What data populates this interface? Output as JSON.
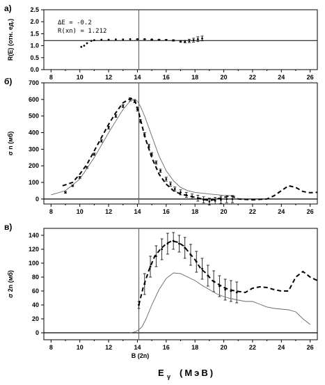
{
  "figure": {
    "xlabel_main": "E",
    "xlabel_sub": "γ",
    "xlabel_rest": "(МэВ)"
  },
  "chart_data": [
    {
      "type": "scatter",
      "panel_label": "а)",
      "ylabel": "R(E) (отн. ед.)",
      "annotations": [
        "ΔE = -0.2",
        "R(xn) = 1.212"
      ],
      "xlim": [
        7.5,
        26.5
      ],
      "ylim": [
        0,
        2.5
      ],
      "xticks": [
        8,
        10,
        12,
        14,
        16,
        18,
        20,
        22,
        24,
        26
      ],
      "yticks": [
        0.0,
        0.5,
        1.0,
        1.5,
        2.0,
        2.5
      ],
      "reference_line_y": 1.212,
      "vertical_line_x": 14.1,
      "series": [
        {
          "x": [
            10.1,
            10.3,
            10.5,
            10.8,
            11.0,
            11.5,
            12.0,
            12.5,
            13.0,
            13.5,
            14.0,
            14.5,
            15.0,
            15.5,
            16.0,
            16.5,
            17.0,
            17.3,
            17.6,
            17.9,
            18.2,
            18.5
          ],
          "y": [
            0.95,
            1.0,
            1.1,
            1.2,
            1.23,
            1.25,
            1.25,
            1.26,
            1.26,
            1.27,
            1.27,
            1.27,
            1.26,
            1.25,
            1.24,
            1.22,
            1.18,
            1.17,
            1.2,
            1.23,
            1.27,
            1.3
          ],
          "err": [
            0,
            0,
            0,
            0,
            0,
            0,
            0,
            0,
            0,
            0,
            0.01,
            0.01,
            0.01,
            0.01,
            0.02,
            0.03,
            0.04,
            0.05,
            0.07,
            0.08,
            0.1,
            0.1
          ]
        }
      ]
    },
    {
      "type": "line",
      "panel_label": "б)",
      "ylabel": "σ n (мб)",
      "xlim": [
        7.5,
        26.5
      ],
      "ylim": [
        -30,
        700
      ],
      "xticks": [
        8,
        10,
        12,
        14,
        16,
        18,
        20,
        22,
        24,
        26
      ],
      "yticks": [
        0,
        100,
        200,
        300,
        400,
        500,
        600,
        700
      ],
      "vertical_line_x": 14.1,
      "series": [
        {
          "style": "dashed",
          "x": [
            8.8,
            9.5,
            10.0,
            10.5,
            11.0,
            11.5,
            12.0,
            12.5,
            13.0,
            13.5,
            13.8,
            14.1,
            14.5,
            15.0,
            15.5,
            16.0,
            16.5,
            17.0,
            17.5,
            18.0,
            18.5,
            19.0,
            19.5,
            20.0,
            20.5,
            21.0,
            22.0,
            23.0,
            23.5,
            24.0,
            24.5,
            25.0,
            25.5,
            26.0,
            26.5
          ],
          "y": [
            80,
            100,
            150,
            210,
            290,
            370,
            450,
            520,
            580,
            605,
            600,
            520,
            380,
            250,
            150,
            90,
            50,
            30,
            20,
            10,
            0,
            -10,
            0,
            10,
            20,
            0,
            -5,
            0,
            20,
            50,
            80,
            70,
            45,
            38,
            40
          ]
        },
        {
          "style": "errorbars",
          "x": [
            9.0,
            9.5,
            10.0,
            10.5,
            11.0,
            11.5,
            12.0,
            12.5,
            13.0,
            13.5,
            13.8,
            14.0,
            14.2,
            14.5,
            14.8,
            15.0,
            15.3,
            15.6,
            16.0,
            16.3,
            16.6,
            17.0,
            17.4,
            17.8,
            18.2,
            18.6,
            19.0,
            19.4,
            19.8,
            20.2,
            20.6
          ],
          "y": [
            40,
            80,
            130,
            190,
            270,
            350,
            430,
            500,
            560,
            600,
            590,
            540,
            470,
            390,
            320,
            270,
            220,
            170,
            120,
            90,
            60,
            40,
            25,
            15,
            5,
            -5,
            -15,
            -10,
            -5,
            0,
            0
          ],
          "err": [
            5,
            5,
            6,
            6,
            7,
            7,
            8,
            8,
            9,
            10,
            10,
            10,
            10,
            10,
            10,
            10,
            10,
            10,
            12,
            12,
            12,
            15,
            15,
            15,
            18,
            18,
            20,
            20,
            22,
            22,
            22
          ]
        },
        {
          "style": "solid-thin",
          "x": [
            8.0,
            9.0,
            10.0,
            11.0,
            12.0,
            12.5,
            13.0,
            13.5,
            13.8,
            14.0,
            14.2,
            14.5,
            15.0,
            15.5,
            16.0,
            16.5,
            17.0,
            17.5,
            18.0,
            19.0,
            20.0,
            20.8
          ],
          "y": [
            25,
            50,
            120,
            250,
            400,
            470,
            540,
            590,
            600,
            590,
            560,
            500,
            380,
            260,
            170,
            110,
            70,
            50,
            40,
            30,
            22,
            20
          ]
        }
      ]
    },
    {
      "type": "line",
      "panel_label": "в)",
      "ylabel": "σ 2n (мб)",
      "xlabel": "В (2n)",
      "xlim": [
        7.5,
        26.5
      ],
      "ylim": [
        -10,
        150
      ],
      "xticks": [
        8,
        10,
        12,
        14,
        16,
        18,
        20,
        22,
        24,
        26
      ],
      "yticks": [
        0,
        20,
        40,
        60,
        80,
        100,
        120,
        140
      ],
      "vertical_line_x": 14.1,
      "series": [
        {
          "style": "dashed",
          "x": [
            14.1,
            14.4,
            14.8,
            15.2,
            15.6,
            16.0,
            16.4,
            16.8,
            17.2,
            17.6,
            18.0,
            18.4,
            18.8,
            19.2,
            19.6,
            20.0,
            20.4,
            20.8,
            21.5,
            22.0,
            22.5,
            23.0,
            23.5,
            24.0,
            24.5,
            25.0,
            25.5,
            26.0,
            26.5
          ],
          "y": [
            40,
            65,
            90,
            110,
            120,
            128,
            132,
            130,
            125,
            115,
            105,
            92,
            85,
            75,
            70,
            65,
            62,
            60,
            58,
            64,
            66,
            65,
            62,
            60,
            60,
            80,
            88,
            80,
            75
          ]
        },
        {
          "style": "errorbars",
          "x": [
            14.1,
            14.5,
            14.9,
            15.3,
            15.7,
            16.1,
            16.5,
            16.9,
            17.3,
            17.7,
            18.1,
            18.5,
            18.9,
            19.3,
            19.7,
            20.1,
            20.5,
            20.9
          ],
          "y": [
            40,
            70,
            95,
            110,
            120,
            128,
            132,
            128,
            122,
            112,
            102,
            92,
            82,
            74,
            67,
            62,
            60,
            58
          ],
          "err": [
            5,
            15,
            15,
            15,
            15,
            15,
            12,
            12,
            15,
            15,
            15,
            15,
            15,
            15,
            15,
            15,
            15,
            15
          ]
        },
        {
          "style": "solid-thin",
          "x": [
            13.5,
            13.8,
            14.0,
            14.3,
            14.6,
            15.0,
            15.5,
            16.0,
            16.5,
            17.0,
            17.5,
            18.0,
            18.5,
            19.0,
            19.5,
            20.0,
            20.5,
            21.0,
            21.5,
            22.0,
            22.5,
            23.0,
            23.5,
            24.0,
            24.5,
            25.0,
            25.5,
            26.0
          ],
          "y": [
            0,
            1,
            3,
            8,
            20,
            40,
            62,
            78,
            86,
            85,
            80,
            75,
            68,
            62,
            56,
            52,
            49,
            47,
            45,
            45,
            41,
            37,
            35,
            34,
            33,
            30,
            20,
            12
          ]
        }
      ]
    }
  ]
}
